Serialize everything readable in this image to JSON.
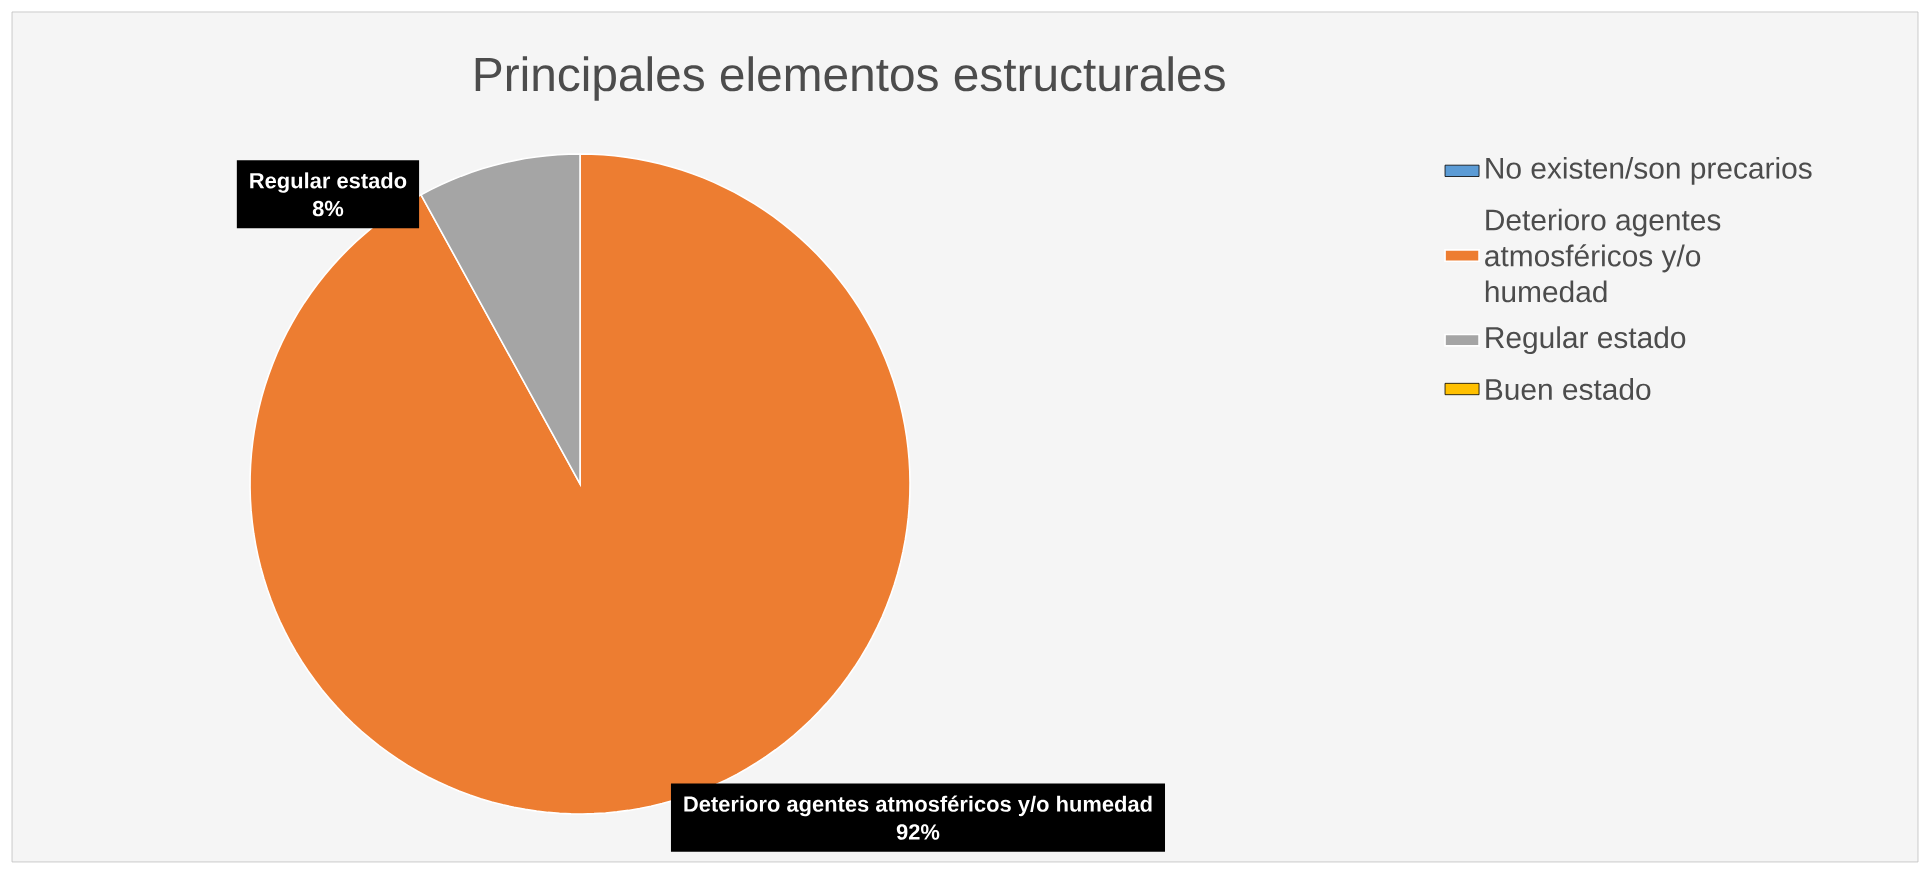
{
  "chart_data": {
    "type": "pie",
    "title": "Principales elementos estructurales",
    "categories": [
      "No existen/son precarios",
      "Deterioro agentes atmosféricos y/o humedad",
      "Regular estado",
      "Buen estado"
    ],
    "values": [
      0,
      92,
      8,
      0
    ],
    "colors": [
      "#5b9bd5",
      "#ed7d31",
      "#a5a5a5",
      "#ffc000"
    ],
    "value_labels": [
      null,
      "92%",
      "8%",
      null
    ],
    "legend": "right"
  }
}
